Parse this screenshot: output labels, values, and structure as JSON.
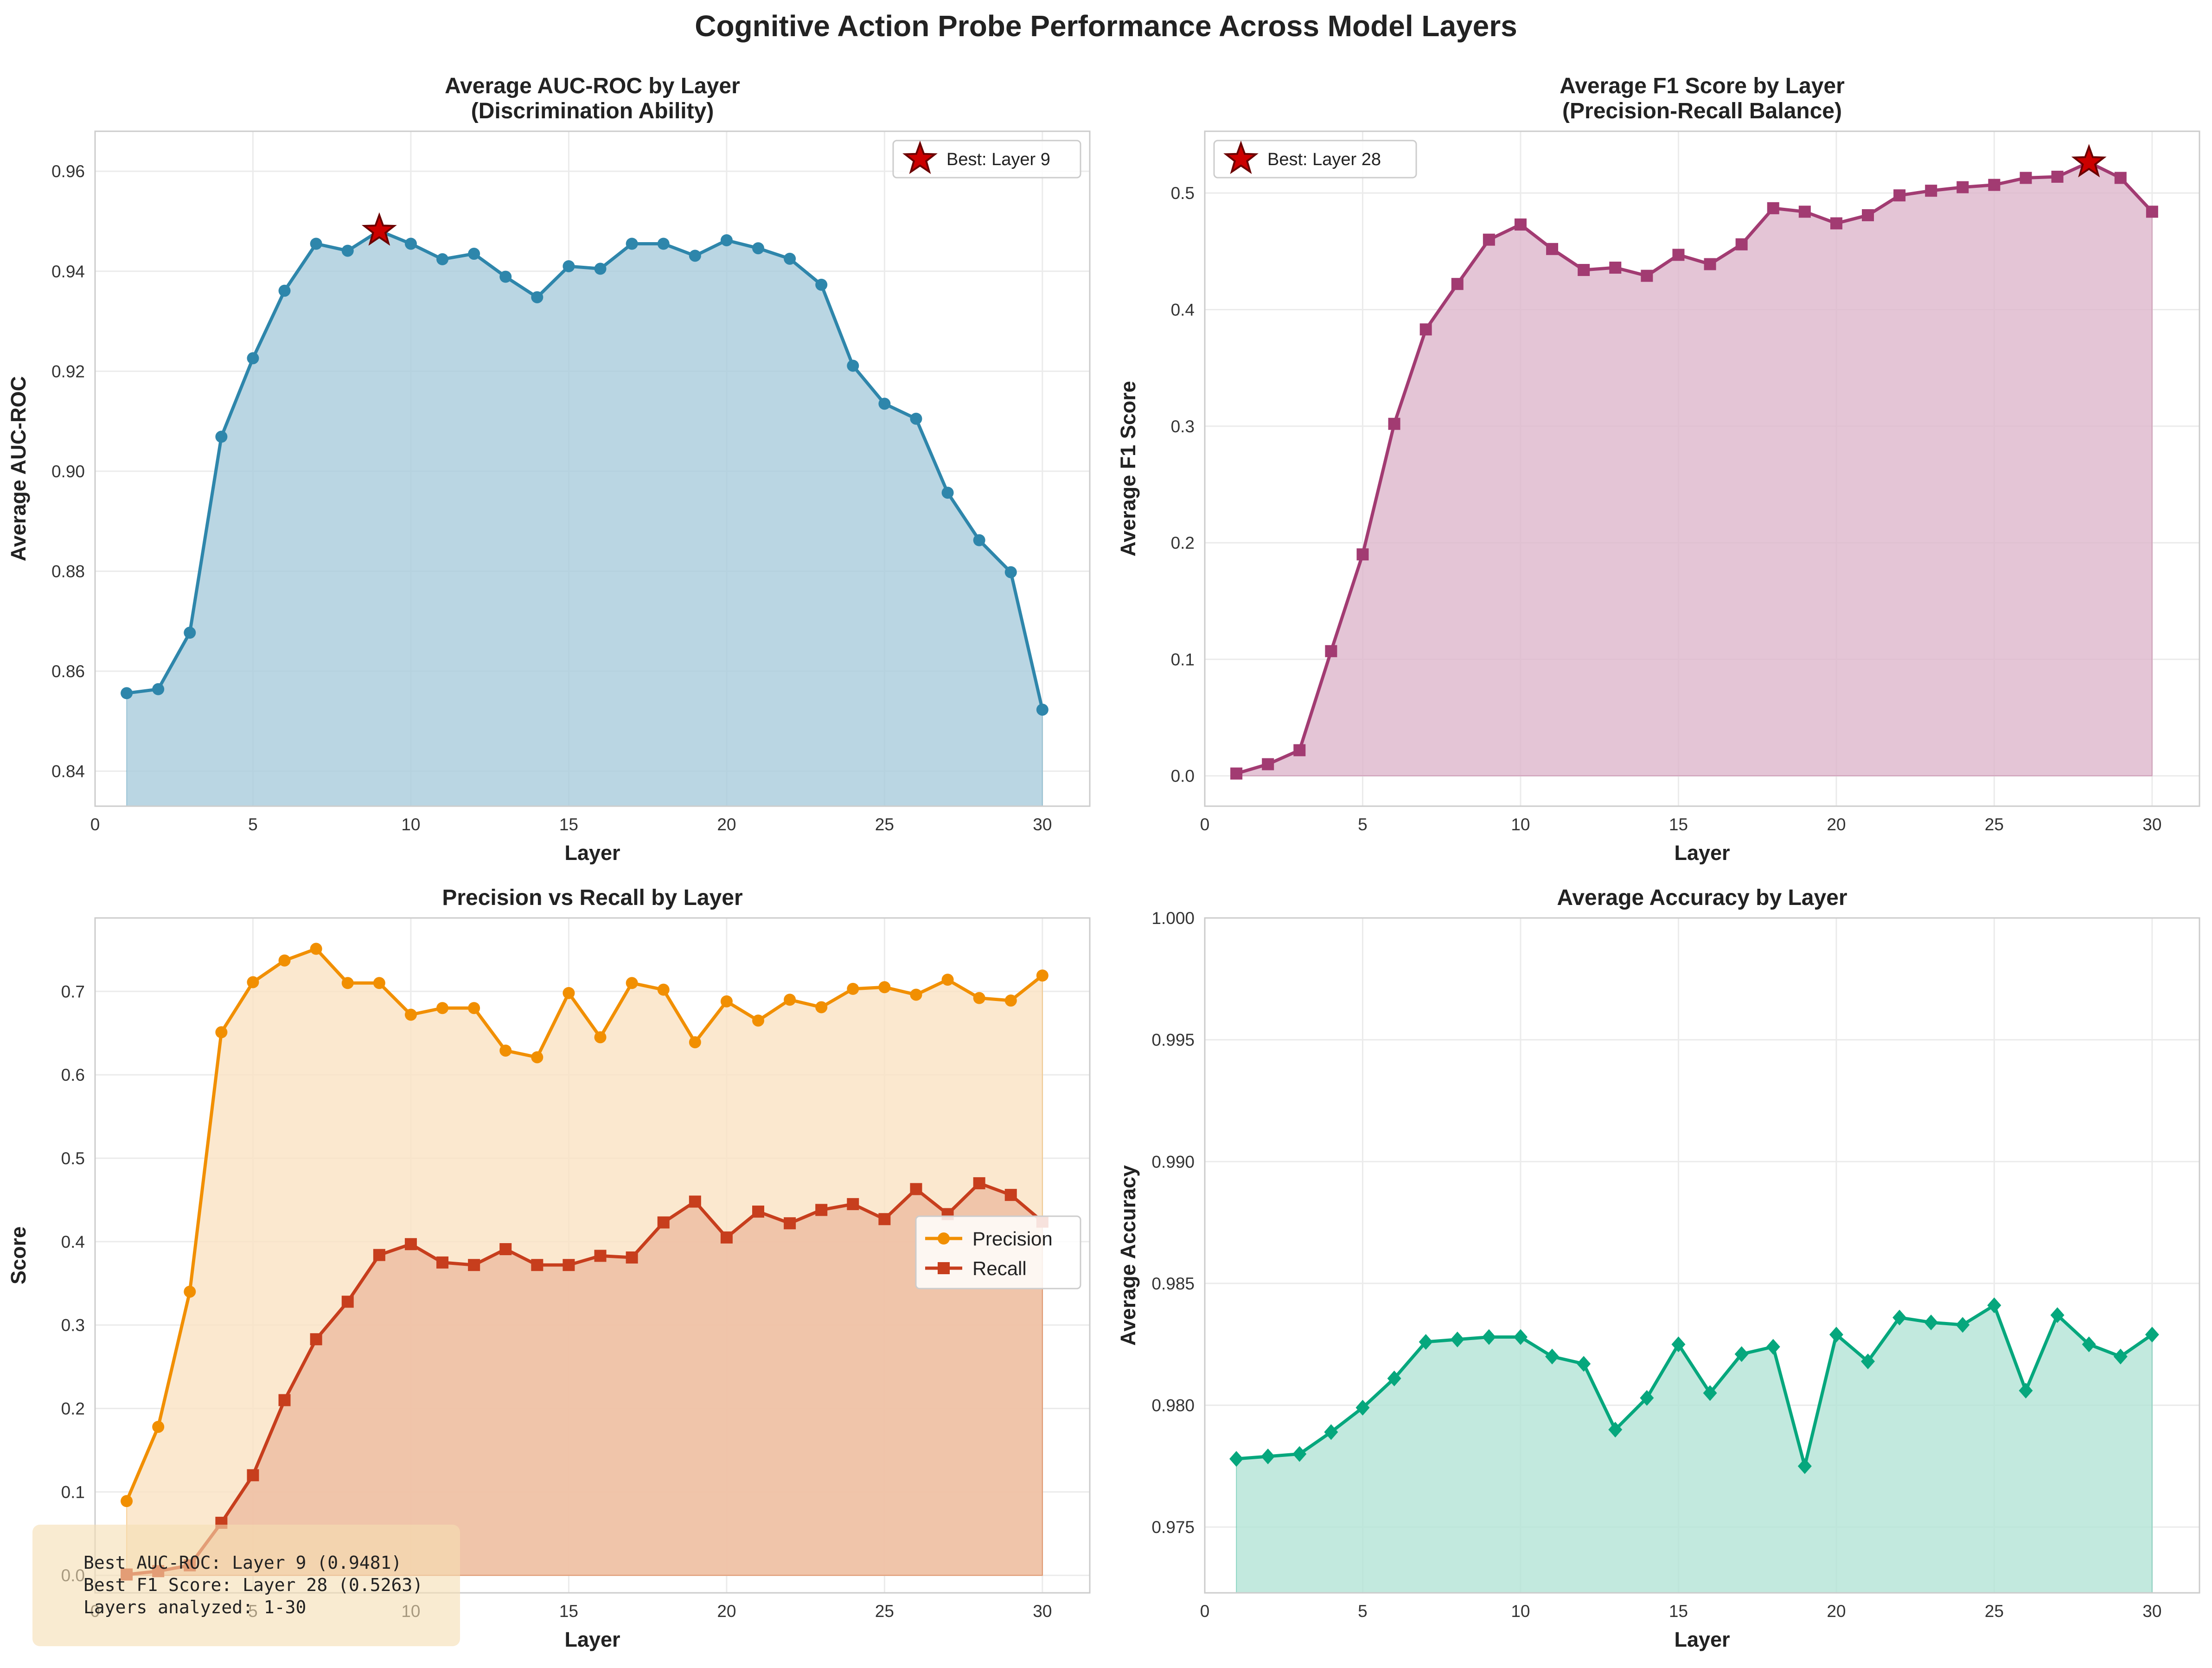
{
  "suptitle": "Cognitive Action Probe Performance Across Model Layers",
  "chart_data": [
    {
      "id": "auc",
      "type": "area",
      "title": [
        "Average AUC-ROC by Layer",
        "(Discrimination Ability)"
      ],
      "xlabel": "Layer",
      "ylabel": "Average AUC-ROC",
      "xlim": [
        0,
        31.5
      ],
      "ylim": [
        0.833,
        0.968
      ],
      "xticks": [
        0,
        5,
        10,
        15,
        20,
        25,
        30
      ],
      "yticks": [
        0.84,
        0.86,
        0.88,
        0.9,
        0.92,
        0.94,
        0.96
      ],
      "ytick_labels": [
        "0.84",
        "0.86",
        "0.88",
        "0.90",
        "0.92",
        "0.94",
        "0.96"
      ],
      "grid": true,
      "legend_position": "upper right",
      "fill_base": 0.833,
      "series": [
        {
          "color": "#2E86AB",
          "fill": "#A9CCDC",
          "marker": "circle",
          "x": [
            1,
            2,
            3,
            4,
            5,
            6,
            7,
            8,
            9,
            10,
            11,
            12,
            13,
            14,
            15,
            16,
            17,
            18,
            19,
            20,
            21,
            22,
            23,
            24,
            25,
            26,
            27,
            28,
            29,
            30
          ],
          "values": [
            0.8556,
            0.8564,
            0.8677,
            0.9069,
            0.9226,
            0.9361,
            0.9455,
            0.9441,
            0.9481,
            0.9455,
            0.9424,
            0.9435,
            0.9389,
            0.9348,
            0.941,
            0.9405,
            0.9455,
            0.9455,
            0.9431,
            0.9462,
            0.9446,
            0.9425,
            0.9373,
            0.9211,
            0.9135,
            0.9105,
            0.8957,
            0.8862,
            0.8798,
            0.8523
          ]
        }
      ],
      "best": {
        "x": 9,
        "y": 0.9481,
        "label": "Best: Layer 9"
      }
    },
    {
      "id": "f1",
      "type": "area",
      "title": [
        "Average F1 Score by Layer",
        "(Precision-Recall Balance)"
      ],
      "xlabel": "Layer",
      "ylabel": "Average F1 Score",
      "xlim": [
        0,
        31.5
      ],
      "ylim": [
        -0.026,
        0.553
      ],
      "xticks": [
        0,
        5,
        10,
        15,
        20,
        25,
        30
      ],
      "yticks": [
        0,
        0.1,
        0.2,
        0.3,
        0.4,
        0.5
      ],
      "ytick_labels": [
        "0.0",
        "0.1",
        "0.2",
        "0.3",
        "0.4",
        "0.5"
      ],
      "grid": true,
      "legend_position": "upper left",
      "fill_base": 0,
      "series": [
        {
          "color": "#A23B72",
          "fill": "#DDB7CC",
          "marker": "square",
          "x": [
            1,
            2,
            3,
            4,
            5,
            6,
            7,
            8,
            9,
            10,
            11,
            12,
            13,
            14,
            15,
            16,
            17,
            18,
            19,
            20,
            21,
            22,
            23,
            24,
            25,
            26,
            27,
            28,
            29,
            30
          ],
          "values": [
            0.002,
            0.01,
            0.022,
            0.107,
            0.19,
            0.302,
            0.383,
            0.422,
            0.46,
            0.473,
            0.452,
            0.434,
            0.436,
            0.429,
            0.447,
            0.439,
            0.456,
            0.487,
            0.484,
            0.474,
            0.481,
            0.498,
            0.502,
            0.505,
            0.507,
            0.513,
            0.514,
            0.5263,
            0.513,
            0.484
          ]
        }
      ],
      "best": {
        "x": 28,
        "y": 0.5263,
        "label": "Best: Layer 28"
      }
    },
    {
      "id": "pr",
      "type": "area",
      "title": [
        "Precision vs Recall by Layer"
      ],
      "xlabel": "Layer",
      "ylabel": "Score",
      "xlim": [
        0,
        31.5
      ],
      "ylim": [
        -0.021,
        0.788
      ],
      "xticks": [
        0,
        5,
        10,
        15,
        20,
        25,
        30
      ],
      "yticks": [
        0,
        0.1,
        0.2,
        0.3,
        0.4,
        0.5,
        0.6,
        0.7
      ],
      "ytick_labels": [
        "0.0",
        "0.1",
        "0.2",
        "0.3",
        "0.4",
        "0.5",
        "0.6",
        "0.7"
      ],
      "grid": true,
      "legend_position": "center right",
      "fill_base": 0,
      "series": [
        {
          "name": "Precision",
          "color": "#F18F01",
          "fill": "#FAE2C3",
          "marker": "circle",
          "x": [
            1,
            2,
            3,
            4,
            5,
            6,
            7,
            8,
            9,
            10,
            11,
            12,
            13,
            14,
            15,
            16,
            17,
            18,
            19,
            20,
            21,
            22,
            23,
            24,
            25,
            26,
            27,
            28,
            29,
            30
          ],
          "values": [
            0.089,
            0.178,
            0.34,
            0.651,
            0.711,
            0.737,
            0.751,
            0.71,
            0.71,
            0.672,
            0.68,
            0.68,
            0.629,
            0.621,
            0.698,
            0.645,
            0.71,
            0.702,
            0.639,
            0.688,
            0.665,
            0.69,
            0.681,
            0.703,
            0.705,
            0.696,
            0.714,
            0.692,
            0.689,
            0.719
          ]
        },
        {
          "name": "Recall",
          "color": "#C73E1D",
          "fill": "#EDBCA0",
          "marker": "square",
          "x": [
            1,
            2,
            3,
            4,
            5,
            6,
            7,
            8,
            9,
            10,
            11,
            12,
            13,
            14,
            15,
            16,
            17,
            18,
            19,
            20,
            21,
            22,
            23,
            24,
            25,
            26,
            27,
            28,
            29,
            30
          ],
          "values": [
            0.001,
            0.005,
            0.012,
            0.063,
            0.12,
            0.21,
            0.283,
            0.328,
            0.384,
            0.397,
            0.375,
            0.372,
            0.391,
            0.372,
            0.372,
            0.383,
            0.381,
            0.423,
            0.448,
            0.405,
            0.436,
            0.422,
            0.438,
            0.445,
            0.427,
            0.463,
            0.433,
            0.47,
            0.456,
            0.424
          ]
        }
      ],
      "annotation": [
        "Best AUC-ROC: Layer 9 (0.9481)",
        "Best F1 Score: Layer 28 (0.5263)",
        "Layers analyzed: 1-30"
      ]
    },
    {
      "id": "acc",
      "type": "area",
      "title": [
        "Average Accuracy by Layer"
      ],
      "xlabel": "Layer",
      "ylabel": "Average Accuracy",
      "xlim": [
        0,
        31.5
      ],
      "ylim": [
        0.9723,
        1.0
      ],
      "xticks": [
        0,
        5,
        10,
        15,
        20,
        25,
        30
      ],
      "yticks": [
        0.975,
        0.98,
        0.985,
        0.99,
        0.995,
        1.0
      ],
      "ytick_labels": [
        "0.975",
        "0.980",
        "0.985",
        "0.990",
        "0.995",
        "1.000"
      ],
      "grid": true,
      "fill_base": 0.9723,
      "series": [
        {
          "color": "#06A77D",
          "fill": "#B3E4D6",
          "marker": "diamond",
          "x": [
            1,
            2,
            3,
            4,
            5,
            6,
            7,
            8,
            9,
            10,
            11,
            12,
            13,
            14,
            15,
            16,
            17,
            18,
            19,
            20,
            21,
            22,
            23,
            24,
            25,
            26,
            27,
            28,
            29,
            30
          ],
          "values": [
            0.9778,
            0.9779,
            0.978,
            0.9789,
            0.9799,
            0.9811,
            0.9826,
            0.9827,
            0.9828,
            0.9828,
            0.982,
            0.9817,
            0.979,
            0.9803,
            0.9825,
            0.9805,
            0.9821,
            0.9824,
            0.9775,
            0.9829,
            0.9818,
            0.9836,
            0.9834,
            0.9833,
            0.9841,
            0.9806,
            0.9837,
            0.9825,
            0.982,
            0.9829
          ]
        }
      ]
    }
  ]
}
